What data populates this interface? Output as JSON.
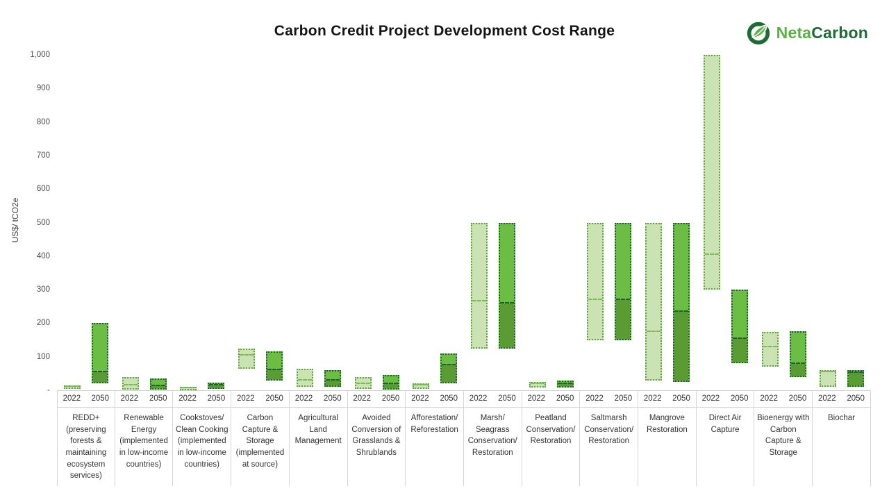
{
  "header": {
    "title": "Carbon Credit Project Development Cost Range",
    "logo": {
      "icon": "netacarbon-leaf-icon",
      "text_light": "Neta",
      "text_dark": "Carbon"
    }
  },
  "chart_data": {
    "type": "bar",
    "subtype": "floating-range-bars",
    "title": "Carbon Credit Project Development Cost Range",
    "ylabel": "US$/ tCO2e",
    "ylim": [
      0,
      1000
    ],
    "grid": false,
    "legend": "none",
    "yticks": [
      {
        "value": 1000,
        "label": "1,000"
      },
      {
        "value": 900,
        "label": "900"
      },
      {
        "value": 800,
        "label": "800"
      },
      {
        "value": 700,
        "label": "700"
      },
      {
        "value": 600,
        "label": "600"
      },
      {
        "value": 500,
        "label": "500"
      },
      {
        "value": 400,
        "label": "400"
      },
      {
        "value": 300,
        "label": "300"
      },
      {
        "value": 200,
        "label": "200"
      },
      {
        "value": 100,
        "label": "100"
      },
      {
        "value": 0,
        "label": "-"
      }
    ],
    "years": [
      "2022",
      "2050"
    ],
    "groups": [
      {
        "category": "REDD+ (preserving forests & maintaining ecosystem services)",
        "y2022": {
          "min": 5,
          "mid": 10,
          "max": 15
        },
        "y2050": {
          "min": 20,
          "mid": 50,
          "max": 200
        }
      },
      {
        "category": "Renewable Energy (implemented in low-income countries)",
        "y2022": {
          "min": 2,
          "mid": 10,
          "max": 40
        },
        "y2050": {
          "min": 2,
          "mid": 8,
          "max": 35
        }
      },
      {
        "category": "Cookstoves/ Clean Cooking (implemented in low-income countries)",
        "y2022": {
          "min": 1,
          "mid": 5,
          "max": 10
        },
        "y2050": {
          "min": 5,
          "mid": 10,
          "max": 22
        }
      },
      {
        "category": "Carbon Capture & Storage (implemented at source)",
        "y2022": {
          "min": 65,
          "mid": 100,
          "max": 125
        },
        "y2050": {
          "min": 30,
          "mid": 55,
          "max": 115
        }
      },
      {
        "category": "Agricultural Land Management",
        "y2022": {
          "min": 10,
          "mid": 25,
          "max": 65
        },
        "y2050": {
          "min": 10,
          "mid": 25,
          "max": 60
        }
      },
      {
        "category": "Avoided Conversion of Grasslands & Shrublands",
        "y2022": {
          "min": 5,
          "mid": 15,
          "max": 40
        },
        "y2050": {
          "min": 3,
          "mid": 15,
          "max": 45
        }
      },
      {
        "category": "Afforestation/ Reforestation",
        "y2022": {
          "min": 5,
          "mid": 10,
          "max": 20
        },
        "y2050": {
          "min": 20,
          "mid": 70,
          "max": 110
        }
      },
      {
        "category": "Marsh/ Seagrass Conservation/ Restoration",
        "y2022": {
          "min": 125,
          "mid": 260,
          "max": 500
        },
        "y2050": {
          "min": 125,
          "mid": 255,
          "max": 500
        }
      },
      {
        "category": "Peatland Conservation/ Restoration",
        "y2022": {
          "min": 8,
          "mid": 15,
          "max": 25
        },
        "y2050": {
          "min": 8,
          "mid": 15,
          "max": 28
        }
      },
      {
        "category": "Saltmarsh Conservation/ Restoration",
        "y2022": {
          "min": 150,
          "mid": 265,
          "max": 500
        },
        "y2050": {
          "min": 150,
          "mid": 265,
          "max": 500
        }
      },
      {
        "category": "Mangrove Restoration",
        "y2022": {
          "min": 30,
          "mid": 170,
          "max": 500
        },
        "y2050": {
          "min": 25,
          "mid": 230,
          "max": 500
        }
      },
      {
        "category": "Direct Air Capture",
        "y2022": {
          "min": 300,
          "mid": 400,
          "max": 1000
        },
        "y2050": {
          "min": 80,
          "mid": 150,
          "max": 300
        }
      },
      {
        "category": "Bioenergy with Carbon Capture & Storage",
        "y2022": {
          "min": 70,
          "mid": 125,
          "max": 175
        },
        "y2050": {
          "min": 40,
          "mid": 75,
          "max": 175
        }
      },
      {
        "category": "Biochar",
        "y2022": {
          "min": 10,
          "mid": 50,
          "max": 60
        },
        "y2050": {
          "min": 10,
          "mid": 48,
          "max": 60
        }
      }
    ],
    "colors": {
      "bar_2022_fill": "#cbe3b2",
      "bar_2022_border": "#5aa63c",
      "bar_2022_median": "#7fb95e",
      "bar_2050_fill": "#6bbd44",
      "bar_2050_fill_below_median": "#5a9b33",
      "bar_2050_border": "#1c632b",
      "bar_2050_median": "#1c632b",
      "logo_light": "#5cb043",
      "logo_dark": "#1d6b35"
    }
  }
}
